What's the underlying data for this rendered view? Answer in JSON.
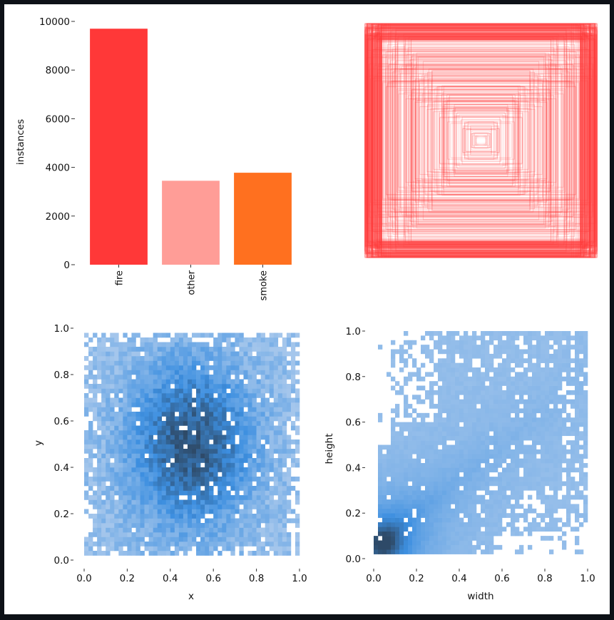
{
  "figure_colors": {
    "frame_background": "#0d1117",
    "panel_background": "#ffffff",
    "fire": "#ff3838",
    "other": "#ff9d97",
    "smoke": "#ff701f",
    "hist_light": "#a8c8ec",
    "hist_mid": "#3d8fe0",
    "hist_dark": "#2e4a68"
  },
  "chart_data": [
    {
      "type": "bar",
      "categories": [
        "fire",
        "other",
        "smoke"
      ],
      "values": [
        9700,
        3450,
        3780
      ],
      "colors": [
        "#ff3838",
        "#ff9d97",
        "#ff701f"
      ],
      "ylabel": "instances",
      "ylim": [
        0,
        10000
      ],
      "yticks": [
        0,
        2000,
        4000,
        6000,
        8000,
        10000
      ],
      "yticklabels": [
        "0",
        "2000",
        "4000",
        "6000",
        "8000",
        "10000"
      ],
      "grid": false,
      "legend": "none"
    },
    {
      "type": "other",
      "description_kind": "overlaid bounding boxes centred on the image",
      "color": "#ff3838",
      "xlim": [
        0,
        1
      ],
      "ylim": [
        0,
        1
      ],
      "axes_visible": false
    },
    {
      "type": "heatmap",
      "xlabel": "x",
      "ylabel": "y",
      "xlim": [
        0,
        1
      ],
      "ylim": [
        0,
        1
      ],
      "xticks": [
        "0.0",
        "0.2",
        "0.4",
        "0.6",
        "0.8",
        "1.0"
      ],
      "yticks": [
        "0.0",
        "0.2",
        "0.4",
        "0.6",
        "0.8",
        "1.0"
      ],
      "bins": 50,
      "populated_range": {
        "x": [
          0.0,
          1.0
        ],
        "y": [
          0.03,
          0.97
        ]
      },
      "peak": {
        "x": 0.5,
        "y": 0.5
      },
      "spread": {
        "x": 0.2,
        "y": 0.25
      },
      "colormap": "light-blue to dark-slate"
    },
    {
      "type": "heatmap",
      "xlabel": "width",
      "ylabel": "height",
      "xlim": [
        0,
        1
      ],
      "ylim": [
        0,
        1
      ],
      "xticks": [
        "0.0",
        "0.2",
        "0.4",
        "0.6",
        "0.8",
        "1.0"
      ],
      "yticks": [
        "0.0",
        "0.2",
        "0.4",
        "0.6",
        "0.8",
        "1.0"
      ],
      "bins": 50,
      "peak": {
        "x": 0.05,
        "y": 0.07
      },
      "colormap": "light-blue to dark-slate"
    }
  ]
}
